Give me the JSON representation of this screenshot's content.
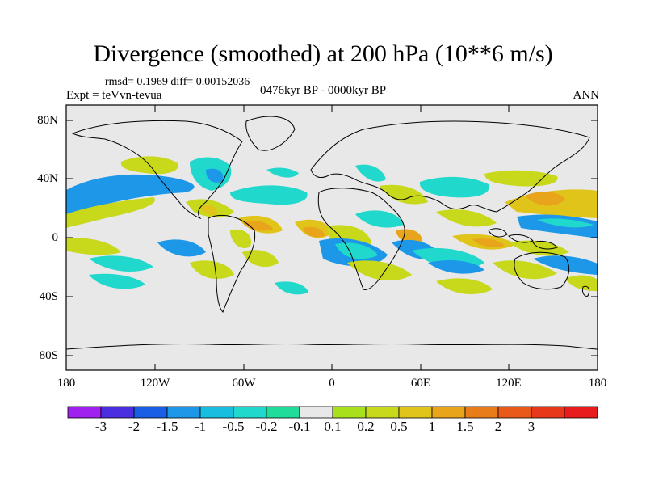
{
  "title": "Divergence (smoothed) at 200 hPa (10**6 m/s)",
  "stats": "rmsd= 0.1969 diff= 0.00152036",
  "experiment": "Expt = teVvn-tevua",
  "period": "0476kyr BP - 0000kyr BP",
  "season": "ANN",
  "map": {
    "projection": "cylindrical equidistant",
    "lon_range": [
      -180,
      180
    ],
    "lat_range": [
      -90,
      90
    ],
    "background": "#e8e8e8",
    "lat_ticks": [
      "80N",
      "40N",
      "0",
      "40S",
      "80S"
    ],
    "lon_ticks": [
      "180",
      "120W",
      "60W",
      "0",
      "60E",
      "120E",
      "180"
    ]
  },
  "colorbar": {
    "colors": [
      "#a020f0",
      "#4b2ee0",
      "#1b5ee6",
      "#1d97e8",
      "#18bde0",
      "#20d8cc",
      "#1fdc9a",
      "#e8e8e8",
      "#a8e01c",
      "#c8d81a",
      "#e0c41a",
      "#e8a41a",
      "#e87c1a",
      "#e85a1a",
      "#e8381a",
      "#e81c1c"
    ],
    "labels": [
      "-3",
      "-2",
      "-1.5",
      "-1",
      "-0.5",
      "-0.2",
      "-0.1",
      "0.1",
      "0.2",
      "0.5",
      "1",
      "1.5",
      "2",
      "3"
    ]
  }
}
